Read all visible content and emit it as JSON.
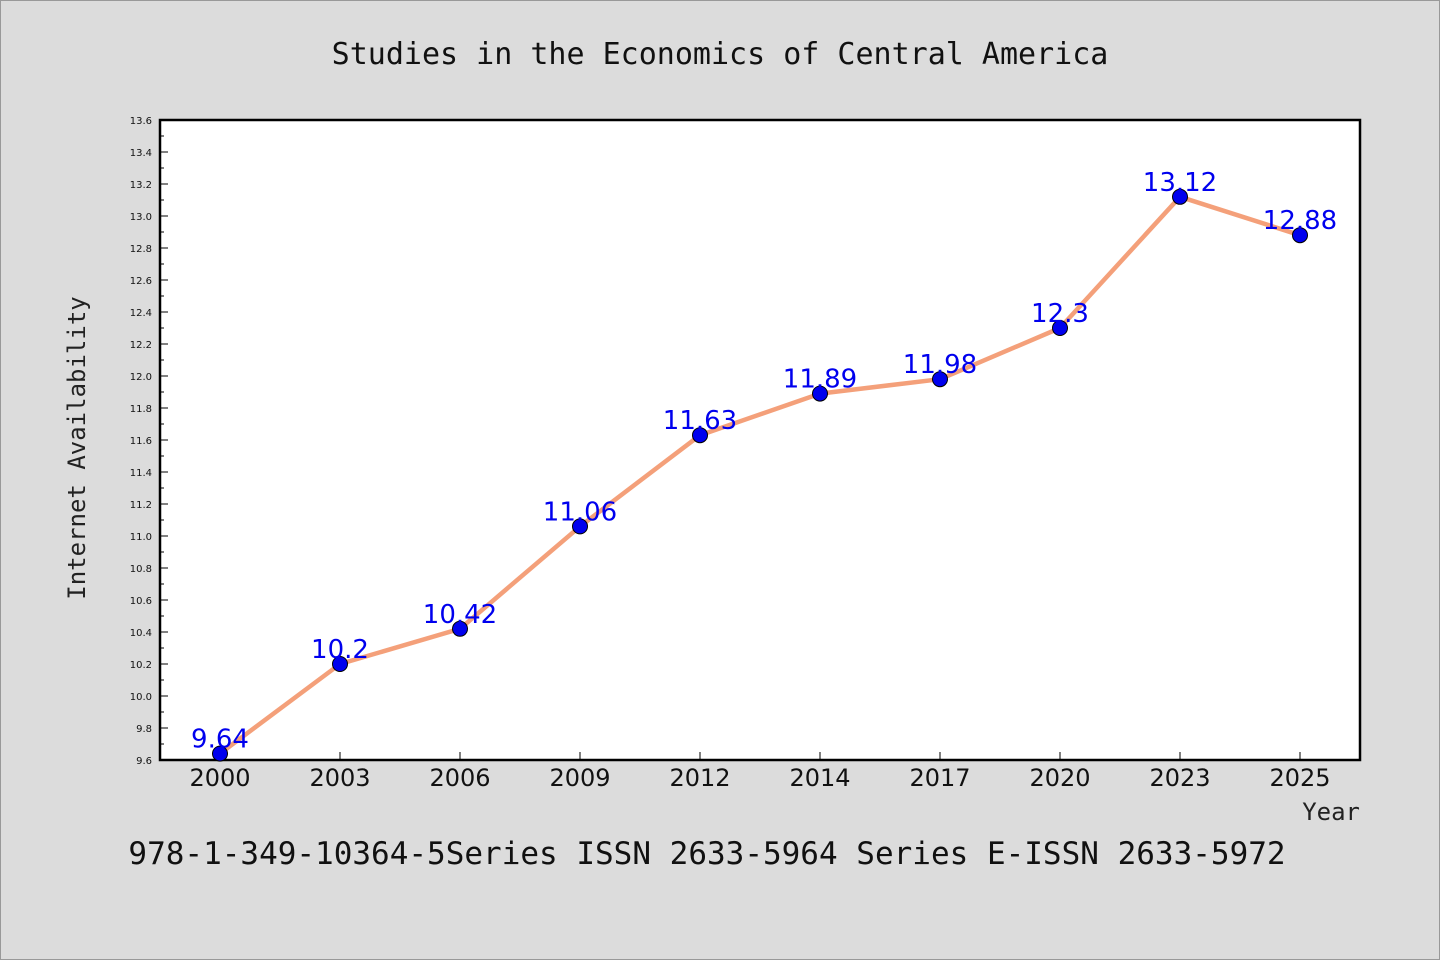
{
  "title": "Studies in the Economics of Central America",
  "footer": "978-1-349-10364-5Series ISSN 2633-5964 Series E-ISSN 2633-5972",
  "colors": {
    "background": "#dcdcdc",
    "plot_area": "#ffffff",
    "line": "#f4a07a",
    "marker": "#0000ee",
    "data_label": "#0000ee"
  },
  "chart_data": {
    "type": "line",
    "title": "Studies in the Economics of Central America",
    "xlabel": "Year",
    "ylabel": "Internet Availability",
    "categories": [
      "2000",
      "2003",
      "2006",
      "2009",
      "2012",
      "2014",
      "2017",
      "2020",
      "2023",
      "2025"
    ],
    "series": [
      {
        "values": [
          9.64,
          10.2,
          10.42,
          11.06,
          11.63,
          11.89,
          11.98,
          12.3,
          13.12,
          12.88
        ],
        "labels": [
          "9.64",
          "10.2",
          "10.42",
          "11.06",
          "11.63",
          "11.89",
          "11.98",
          "12.3",
          "13.12",
          "12.88"
        ]
      }
    ],
    "ylim": [
      9.6,
      13.6
    ],
    "yticks": [
      "9.6",
      "9.8",
      "10.0",
      "10.2",
      "10.4",
      "10.6",
      "10.8",
      "11.0",
      "11.2",
      "11.4",
      "11.6",
      "11.8",
      "12.0",
      "12.2",
      "12.4",
      "12.6",
      "12.8",
      "13.0",
      "13.2",
      "13.4",
      "13.6"
    ],
    "grid": false,
    "legend": "none"
  }
}
